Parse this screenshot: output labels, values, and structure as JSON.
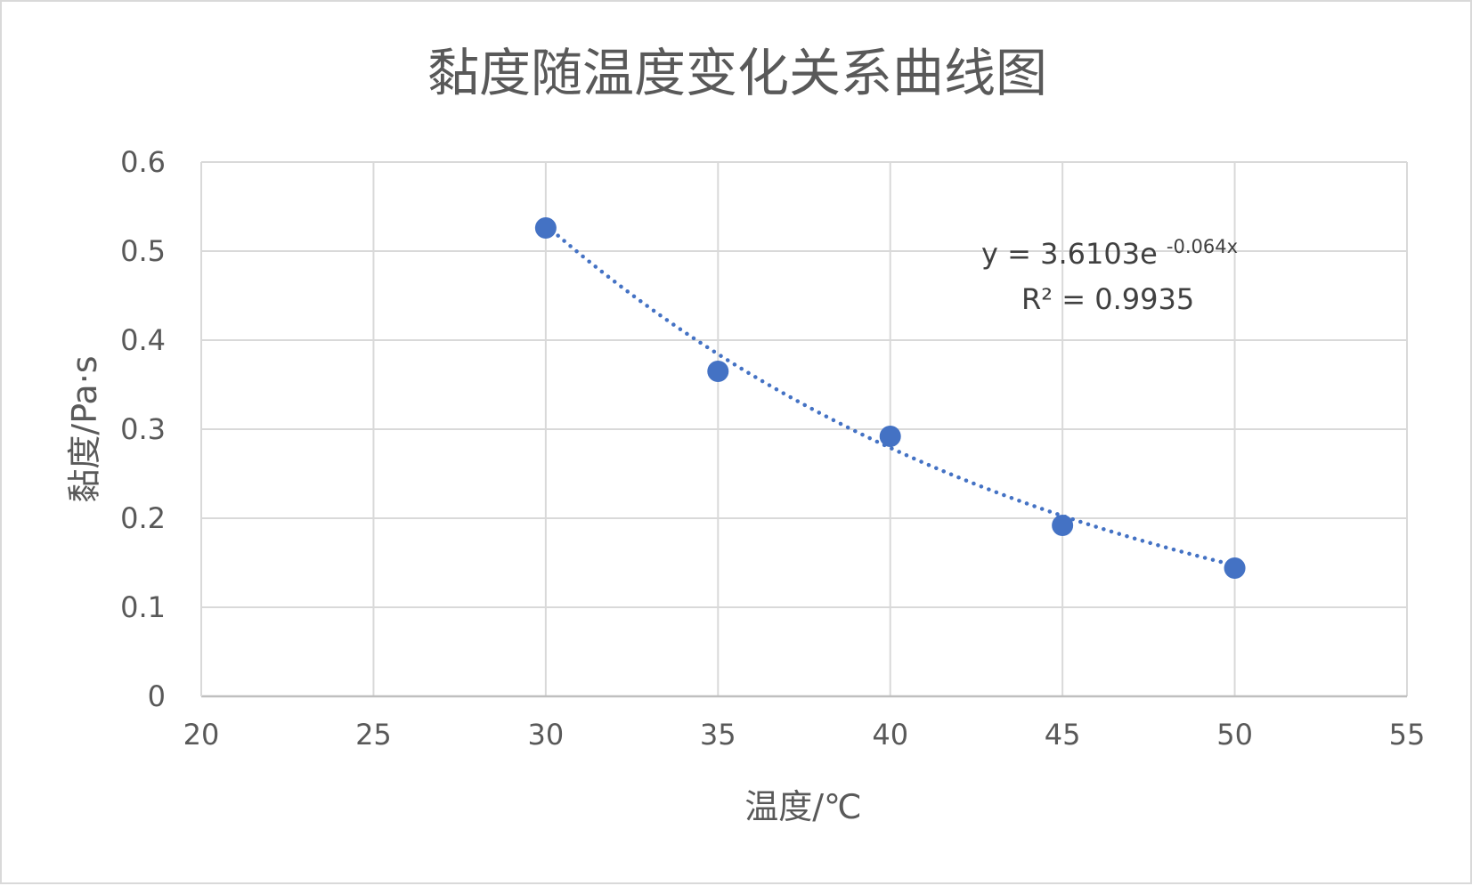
{
  "chart_data": {
    "type": "scatter",
    "title": "黏度随温度变化关系曲线图",
    "xlabel": "温度/℃",
    "ylabel": "黏度/Pa·s",
    "xlim": [
      20,
      55
    ],
    "ylim": [
      0,
      0.6
    ],
    "x_ticks": [
      "20",
      "25",
      "30",
      "35",
      "40",
      "45",
      "50",
      "55"
    ],
    "y_ticks": [
      "0",
      "0.1",
      "0.2",
      "0.3",
      "0.4",
      "0.5",
      "0.6"
    ],
    "grid": true,
    "legend": "none",
    "series": [
      {
        "x": [
          30,
          35,
          40,
          45,
          50
        ],
        "y": [
          0.526,
          0.365,
          0.292,
          0.192,
          0.144
        ],
        "color": "#4472c4"
      }
    ],
    "trendline": {
      "type": "exponential",
      "coefficient": 3.6103,
      "exponent": -0.064,
      "x_range": [
        30,
        50
      ],
      "style": "dotted",
      "color": "#4472c4",
      "equation_prefix": "y = 3.6103e",
      "equation_exponent": "-0.064x",
      "r_squared": "R² = 0.9935"
    }
  }
}
